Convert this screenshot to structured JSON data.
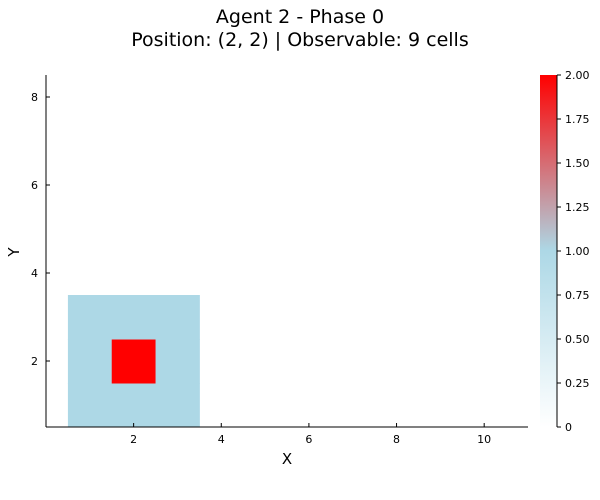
{
  "chart_data": {
    "type": "heatmap",
    "title": "Agent 2 - Phase 0",
    "subtitle": "Position: (2, 2) | Observable: 9 cells",
    "xlabel": "X",
    "ylabel": "Y",
    "xlim": [
      0,
      11
    ],
    "ylim": [
      0.5,
      8.5
    ],
    "xticks": [
      2,
      4,
      6,
      8,
      10
    ],
    "yticks": [
      2,
      4,
      6,
      8
    ],
    "grid": false,
    "cells": [
      {
        "x": 1,
        "y": 1,
        "value": 1
      },
      {
        "x": 2,
        "y": 1,
        "value": 1
      },
      {
        "x": 3,
        "y": 1,
        "value": 1
      },
      {
        "x": 1,
        "y": 2,
        "value": 1
      },
      {
        "x": 2,
        "y": 2,
        "value": 2
      },
      {
        "x": 3,
        "y": 2,
        "value": 1
      },
      {
        "x": 1,
        "y": 3,
        "value": 1
      },
      {
        "x": 2,
        "y": 3,
        "value": 1
      },
      {
        "x": 3,
        "y": 3,
        "value": 1
      }
    ],
    "colorbar": {
      "min": 0,
      "max": 2,
      "ticks": [
        "0",
        "0.25",
        "0.50",
        "0.75",
        "1.00",
        "1.25",
        "1.50",
        "1.75",
        "2.00"
      ],
      "colors": {
        "low": "#ffffff",
        "mid": "#add8e6",
        "high": "#ff0000"
      }
    }
  }
}
